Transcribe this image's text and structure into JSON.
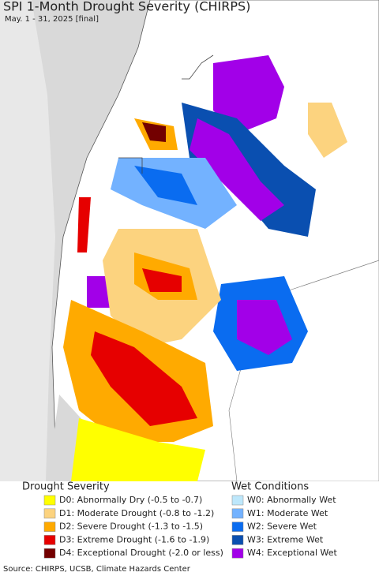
{
  "header": {
    "title": "SPI 1-Month Drought Severity (CHIRPS)",
    "subtitle": "May. 1 - 31, 2025 [final]"
  },
  "legend": {
    "drought": {
      "title": "Drought Severity",
      "items": [
        {
          "label": "D0: Abnormally Dry (-0.5 to -0.7)",
          "color": "#ffff00"
        },
        {
          "label": "D1: Moderate Drought (-0.8 to -1.2)",
          "color": "#fcd37f"
        },
        {
          "label": "D2: Severe Drought (-1.3 to -1.5)",
          "color": "#ffaa00"
        },
        {
          "label": "D3: Extreme Drought (-1.6 to -1.9)",
          "color": "#e60000"
        },
        {
          "label": "D4: Exceptional Drought (-2.0 or less)",
          "color": "#730000"
        }
      ]
    },
    "wet": {
      "title": "Wet Conditions",
      "items": [
        {
          "label": "W0: Abnormally Wet",
          "color": "#bde7fb"
        },
        {
          "label": "W1: Moderate Wet",
          "color": "#73b2ff"
        },
        {
          "label": "W2: Severe Wet",
          "color": "#0a6cf0"
        },
        {
          "label": "W3: Extreme Wet",
          "color": "#0a4fb0"
        },
        {
          "label": "W4: Exceptional Wet",
          "color": "#a200e8"
        }
      ]
    }
  },
  "footer": {
    "source": "Source: CHIRPS, UCSB, Climate Hazards Center"
  }
}
